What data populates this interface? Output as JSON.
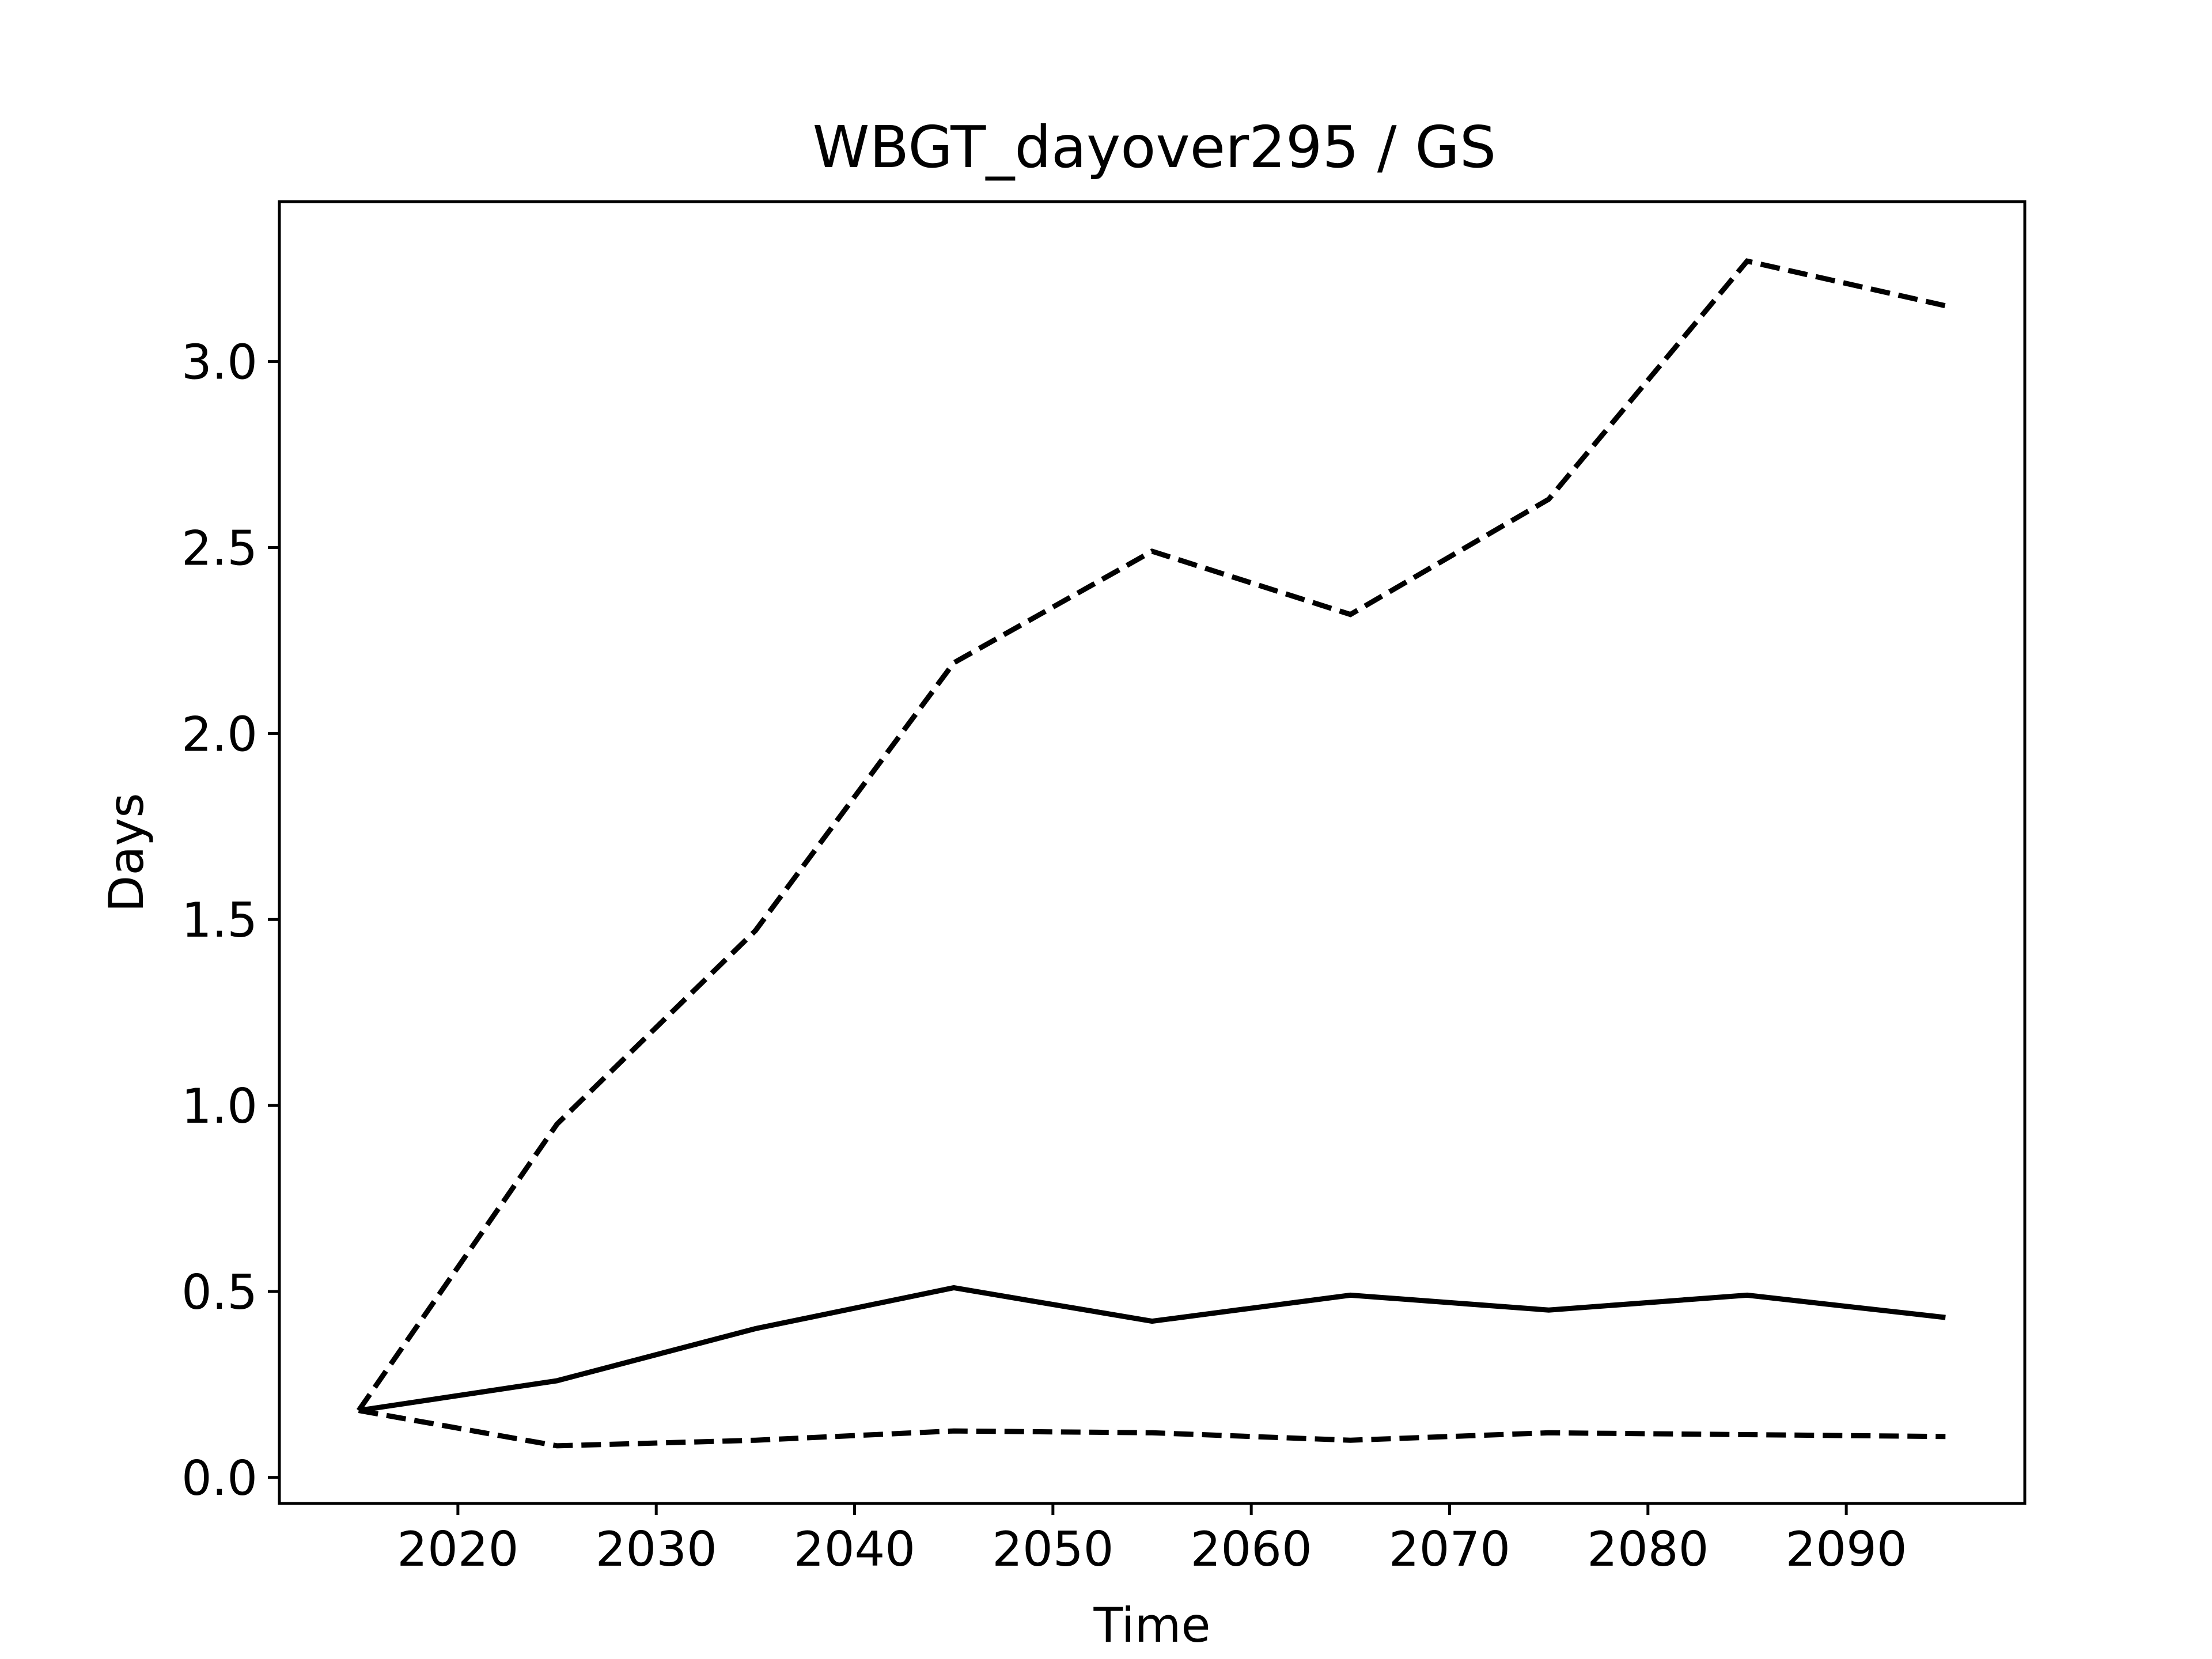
{
  "chart_data": {
    "type": "line",
    "title": "WBGT_dayover295 / GS",
    "xlabel": "Time",
    "ylabel": "Days",
    "xlim": [
      2011,
      2099
    ],
    "ylim": [
      -0.07,
      3.43
    ],
    "grid": false,
    "legend": "none",
    "x_ticks": [
      2020,
      2030,
      2040,
      2050,
      2060,
      2070,
      2080,
      2090
    ],
    "y_ticks": [
      0.0,
      0.5,
      1.0,
      1.5,
      2.0,
      2.5,
      3.0
    ],
    "y_tick_labels": [
      "0.0",
      "0.5",
      "1.0",
      "1.5",
      "2.0",
      "2.5",
      "3.0"
    ],
    "x": [
      2015,
      2025,
      2035,
      2045,
      2055,
      2065,
      2075,
      2085,
      2095
    ],
    "series": [
      {
        "style": "dashed",
        "color": "#000000",
        "values": [
          0.18,
          0.95,
          1.47,
          2.19,
          2.49,
          2.32,
          2.63,
          3.27,
          3.15
        ]
      },
      {
        "style": "solid",
        "color": "#000000",
        "values": [
          0.18,
          0.26,
          0.4,
          0.51,
          0.42,
          0.49,
          0.45,
          0.49,
          0.43
        ]
      },
      {
        "style": "dashed",
        "color": "#000000",
        "values": [
          0.18,
          0.085,
          0.1,
          0.125,
          0.12,
          0.1,
          0.12,
          0.115,
          0.11
        ]
      }
    ]
  }
}
